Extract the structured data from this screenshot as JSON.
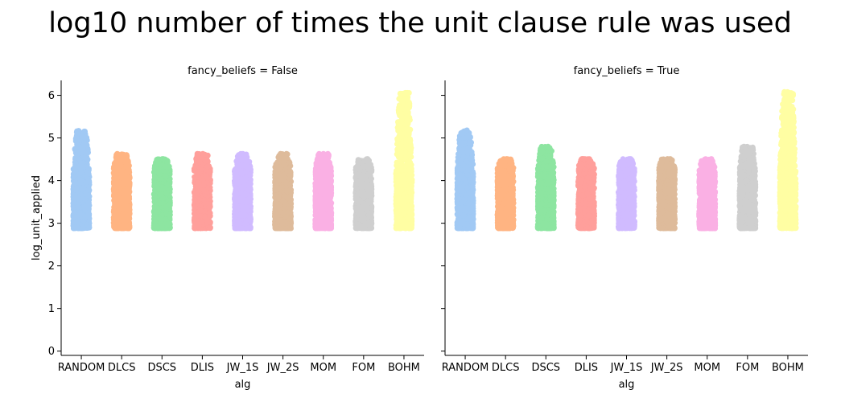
{
  "figure_title": "log10 number of times the unit clause rule was used",
  "chart_data": [
    {
      "type": "scatter",
      "subtype": "strip",
      "title": "fancy_beliefs = False",
      "xlabel": "alg",
      "ylabel": "log_unit_applied",
      "ylim": [
        -0.1,
        6.35
      ],
      "yticks": [
        0,
        1,
        2,
        3,
        4,
        5,
        6
      ],
      "grid": false,
      "categories": [
        "RANDOM",
        "DLCS",
        "DSCS",
        "DLIS",
        "JW_1S",
        "JW_2S",
        "MOM",
        "FOM",
        "BOHM"
      ],
      "colors": [
        "#a1c9f4",
        "#ffb482",
        "#8de5a1",
        "#ff9f9b",
        "#d0bbff",
        "#debb9b",
        "#fab0e4",
        "#cfcfcf",
        "#fffea3"
      ],
      "series": [
        {
          "category": "RANDOM",
          "min": 2.88,
          "max": 5.17,
          "outliers": [
            4.85,
            5.0,
            5.17
          ]
        },
        {
          "category": "DLCS",
          "min": 2.88,
          "max": 4.63,
          "outliers": []
        },
        {
          "category": "DSCS",
          "min": 2.88,
          "max": 4.51,
          "outliers": []
        },
        {
          "category": "DLIS",
          "min": 2.88,
          "max": 4.63,
          "outliers": []
        },
        {
          "category": "JW_1S",
          "min": 2.88,
          "max": 4.63,
          "outliers": []
        },
        {
          "category": "JW_2S",
          "min": 2.88,
          "max": 4.63,
          "outliers": []
        },
        {
          "category": "MOM",
          "min": 2.88,
          "max": 4.63,
          "outliers": []
        },
        {
          "category": "FOM",
          "min": 2.88,
          "max": 4.51,
          "outliers": []
        },
        {
          "category": "BOHM",
          "min": 2.88,
          "max": 6.06,
          "outliers": []
        }
      ]
    },
    {
      "type": "scatter",
      "subtype": "strip",
      "title": "fancy_beliefs = True",
      "xlabel": "alg",
      "ylabel": "",
      "ylim": [
        -0.1,
        6.35
      ],
      "yticks": [
        0,
        1,
        2,
        3,
        4,
        5,
        6
      ],
      "grid": false,
      "categories": [
        "RANDOM",
        "DLCS",
        "DSCS",
        "DLIS",
        "JW_1S",
        "JW_2S",
        "MOM",
        "FOM",
        "BOHM"
      ],
      "colors": [
        "#a1c9f4",
        "#ffb482",
        "#8de5a1",
        "#ff9f9b",
        "#d0bbff",
        "#debb9b",
        "#fab0e4",
        "#cfcfcf",
        "#fffea3"
      ],
      "series": [
        {
          "category": "RANDOM",
          "min": 2.88,
          "max": 5.18,
          "outliers": [
            5.03,
            5.1,
            5.18
          ]
        },
        {
          "category": "DLCS",
          "min": 2.88,
          "max": 4.51,
          "outliers": []
        },
        {
          "category": "DSCS",
          "min": 2.88,
          "max": 4.8,
          "outliers": [
            4.8
          ]
        },
        {
          "category": "DLIS",
          "min": 2.88,
          "max": 4.51,
          "outliers": []
        },
        {
          "category": "JW_1S",
          "min": 2.88,
          "max": 4.51,
          "outliers": []
        },
        {
          "category": "JW_2S",
          "min": 2.88,
          "max": 4.51,
          "outliers": []
        },
        {
          "category": "MOM",
          "min": 2.88,
          "max": 4.51,
          "outliers": []
        },
        {
          "category": "FOM",
          "min": 2.88,
          "max": 4.8,
          "outliers": [
            4.8
          ]
        },
        {
          "category": "BOHM",
          "min": 2.88,
          "max": 6.08,
          "outliers": []
        }
      ]
    }
  ]
}
